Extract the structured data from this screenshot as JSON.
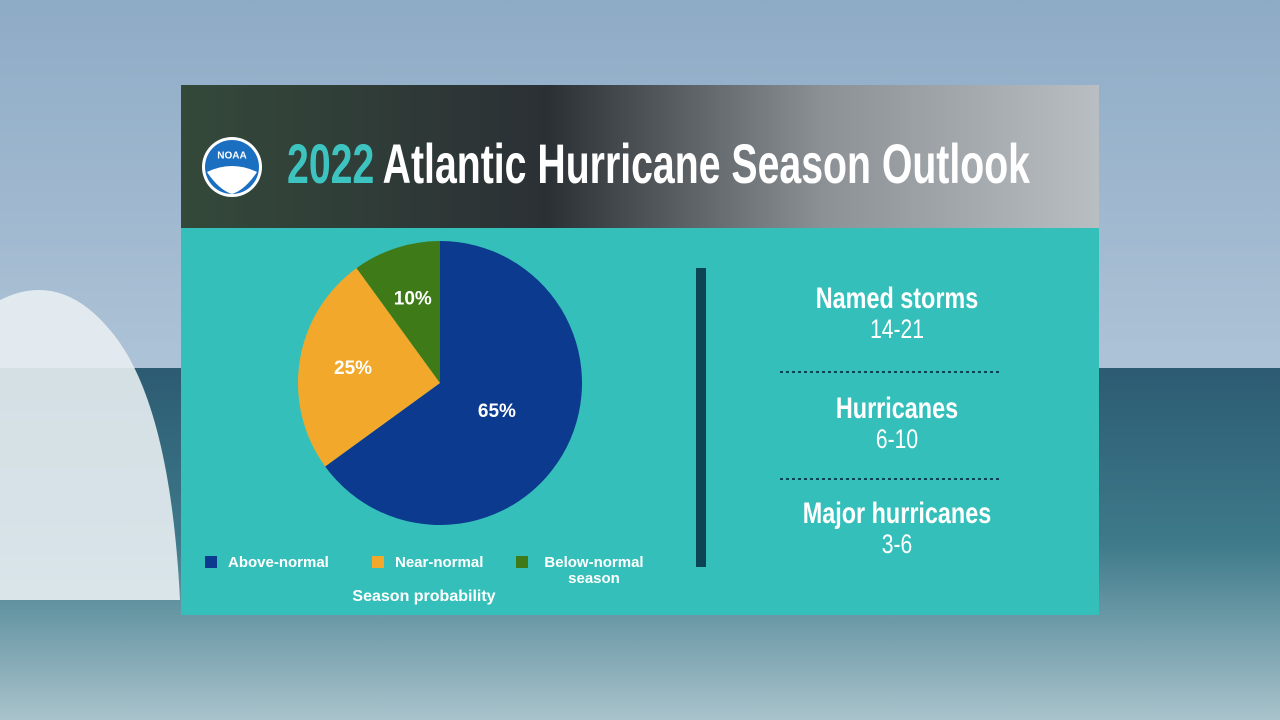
{
  "logo": "NOAA",
  "header": {
    "year": "2022",
    "title": "Atlantic Hurricane Season Outlook"
  },
  "chart_data": {
    "type": "pie",
    "categories": [
      "Above-normal",
      "Near-normal",
      "Below-normal season"
    ],
    "values": [
      65,
      25,
      10
    ],
    "value_labels": [
      "65%",
      "25%",
      "10%"
    ],
    "colors": [
      "#0b3a8e",
      "#f2a82a",
      "#3f7a18"
    ],
    "caption": "Season probability"
  },
  "stats": [
    {
      "label": "Named storms",
      "value": "14-21"
    },
    {
      "label": "Hurricanes",
      "value": "6-10"
    },
    {
      "label": "Major hurricanes",
      "value": "3-6"
    }
  ]
}
